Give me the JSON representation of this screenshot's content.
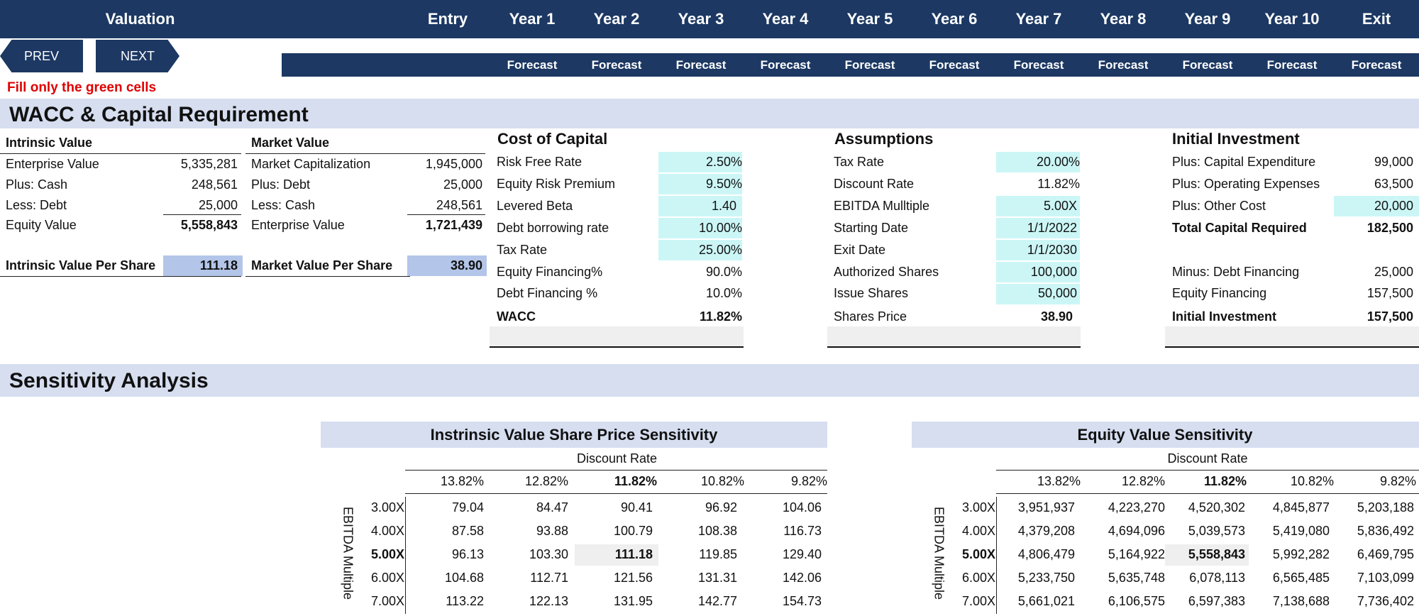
{
  "header": {
    "title": "Valuation",
    "columns": [
      "Entry",
      "Year 1",
      "Year 2",
      "Year 3",
      "Year 4",
      "Year 5",
      "Year 6",
      "Year 7",
      "Year 8",
      "Year 9",
      "Year 10",
      "Exit"
    ],
    "sub": [
      "",
      "Forecast",
      "Forecast",
      "Forecast",
      "Forecast",
      "Forecast",
      "Forecast",
      "Forecast",
      "Forecast",
      "Forecast",
      "Forecast",
      "Forecast"
    ],
    "prev": "PREV",
    "next": "NEXT"
  },
  "note": "Fill only the green cells",
  "section1": "WACC & Capital Requirement",
  "section2": "Sensitivity Analysis",
  "intrinsic": {
    "title": "Intrinsic Value",
    "rows": [
      {
        "label": "Enterprise Value",
        "value": "5,335,281"
      },
      {
        "label": "Plus: Cash",
        "value": "248,561"
      },
      {
        "label": "Less: Debt",
        "value": "25,000"
      },
      {
        "label": "Equity Value",
        "value": "5,558,843"
      }
    ],
    "per_share_label": "Intrinsic Value Per Share",
    "per_share_value": "111.18"
  },
  "market": {
    "title": "Market Value",
    "rows": [
      {
        "label": "Market Capitalization",
        "value": "1,945,000"
      },
      {
        "label": "Plus: Debt",
        "value": "25,000"
      },
      {
        "label": "Less: Cash",
        "value": "248,561"
      },
      {
        "label": "Enterprise Value",
        "value": "1,721,439"
      }
    ],
    "per_share_label": "Market Value Per Share",
    "per_share_value": "38.90"
  },
  "cost_of_capital": {
    "title": "Cost of Capital",
    "rows": [
      {
        "label": "Risk Free Rate",
        "value": "2.50%"
      },
      {
        "label": "Equity Risk Premium",
        "value": "9.50%"
      },
      {
        "label": "Levered Beta",
        "value": "1.40"
      },
      {
        "label": "Debt borrowing rate",
        "value": "10.00%"
      },
      {
        "label": "Tax Rate",
        "value": "25.00%"
      },
      {
        "label": "Equity Financing%",
        "value": "90.0%"
      },
      {
        "label": "Debt Financing %",
        "value": "10.0%"
      },
      {
        "label": "WACC",
        "value": "11.82%"
      }
    ]
  },
  "assumptions": {
    "title": "Assumptions",
    "rows": [
      {
        "label": "Tax Rate",
        "value": "20.00%"
      },
      {
        "label": "Discount Rate",
        "value": "11.82%"
      },
      {
        "label": "EBITDA Mulltiple",
        "value": "5.00X"
      },
      {
        "label": "Starting Date",
        "value": "1/1/2022"
      },
      {
        "label": "Exit Date",
        "value": "1/1/2030"
      },
      {
        "label": "Authorized Shares",
        "value": "100,000"
      },
      {
        "label": "Issue Shares",
        "value": "50,000"
      },
      {
        "label": "Shares Price",
        "value": "38.90"
      }
    ]
  },
  "initial_investment": {
    "title": "Initial Investment",
    "rows": [
      {
        "label": "Plus: Capital Expenditure",
        "value": "99,000"
      },
      {
        "label": "Plus: Operating Expenses",
        "value": "63,500"
      },
      {
        "label": "Plus: Other Cost",
        "value": "20,000"
      },
      {
        "label": "Total Capital Required",
        "value": "182,500"
      },
      {
        "label": "Minus: Debt Financing",
        "value": "25,000"
      },
      {
        "label": "Equity Financing",
        "value": "157,500"
      },
      {
        "label": "Initial Investment",
        "value": "157,500"
      }
    ]
  },
  "sens1": {
    "title": "Instrinsic Value Share Price Sensitivity",
    "col_axis": "Discount Rate",
    "row_axis": "EBITDA Multiple",
    "cols": [
      "13.82%",
      "12.82%",
      "11.82%",
      "10.82%",
      "9.82%"
    ],
    "rows": [
      {
        "label": "3.00X",
        "values": [
          "79.04",
          "84.47",
          "90.41",
          "96.92",
          "104.06"
        ]
      },
      {
        "label": "4.00X",
        "values": [
          "87.58",
          "93.88",
          "100.79",
          "108.38",
          "116.73"
        ]
      },
      {
        "label": "5.00X",
        "values": [
          "96.13",
          "103.30",
          "111.18",
          "119.85",
          "129.40"
        ]
      },
      {
        "label": "6.00X",
        "values": [
          "104.68",
          "112.71",
          "121.56",
          "131.31",
          "142.06"
        ]
      },
      {
        "label": "7.00X",
        "values": [
          "113.22",
          "122.13",
          "131.95",
          "142.77",
          "154.73"
        ]
      }
    ]
  },
  "sens2": {
    "title": "Equity Value Sensitivity",
    "col_axis": "Discount Rate",
    "row_axis": "EBITDA Multiple",
    "cols": [
      "13.82%",
      "12.82%",
      "11.82%",
      "10.82%",
      "9.82%"
    ],
    "rows": [
      {
        "label": "3.00X",
        "values": [
          "3,951,937",
          "4,223,270",
          "4,520,302",
          "4,845,877",
          "5,203,188"
        ]
      },
      {
        "label": "4.00X",
        "values": [
          "4,379,208",
          "4,694,096",
          "5,039,573",
          "5,419,080",
          "5,836,492"
        ]
      },
      {
        "label": "5.00X",
        "values": [
          "4,806,479",
          "5,164,922",
          "5,558,843",
          "5,992,282",
          "6,469,795"
        ]
      },
      {
        "label": "6.00X",
        "values": [
          "5,233,750",
          "5,635,748",
          "6,078,113",
          "6,565,485",
          "7,103,099"
        ]
      },
      {
        "label": "7.00X",
        "values": [
          "5,661,021",
          "6,106,575",
          "6,597,383",
          "7,138,688",
          "7,736,402"
        ]
      }
    ]
  },
  "colors": {
    "navy": "#1c3863",
    "band": "#d6def0",
    "green": "#ccf6f6",
    "blue": "#b3c5e8",
    "note": "#e00000"
  }
}
